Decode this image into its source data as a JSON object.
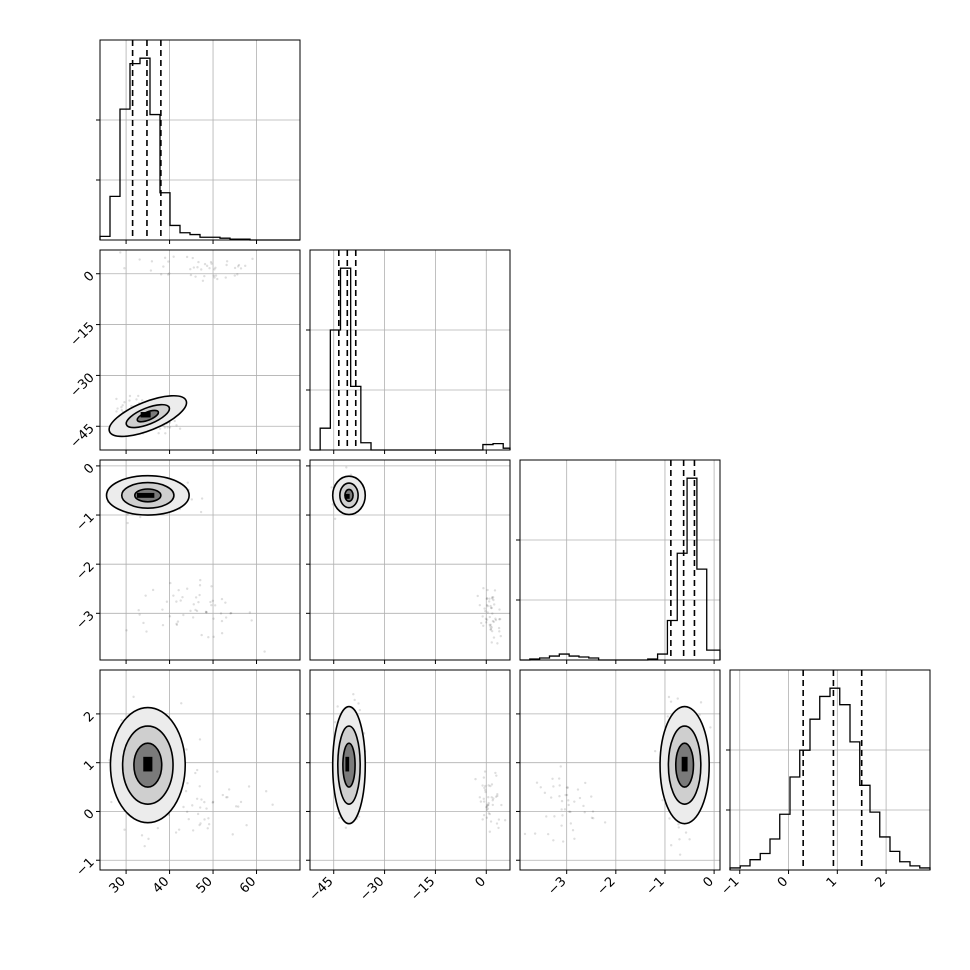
{
  "chart_data": {
    "type": "corner",
    "parameters": [
      {
        "index": 0,
        "range": [
          24,
          70
        ],
        "ticks": [
          30,
          40,
          50,
          60
        ],
        "tick_labels": [
          "30",
          "40",
          "50",
          "60"
        ],
        "quantiles": [
          31.5,
          34.8,
          38.0
        ],
        "hist_edges": [
          24,
          26.3,
          28.6,
          30.9,
          33.2,
          35.5,
          37.8,
          40.1,
          42.4,
          44.7,
          47.0,
          49.3,
          51.6,
          53.9,
          56.2,
          58.5,
          60.8,
          63.1,
          65.4,
          67.7,
          70
        ],
        "hist_counts": [
          0.02,
          0.24,
          0.72,
          0.97,
          1.0,
          0.69,
          0.26,
          0.08,
          0.04,
          0.03,
          0.015,
          0.015,
          0.01,
          0.005,
          0.005,
          0,
          0,
          0,
          0,
          0
        ]
      },
      {
        "index": 1,
        "range": [
          -52,
          7
        ],
        "ticks": [
          -45,
          -30,
          -15,
          0
        ],
        "tick_labels": [
          "−45",
          "−30",
          "−15",
          "0"
        ],
        "quantiles": [
          -43.5,
          -41.0,
          -38.5
        ],
        "hist_edges": [
          -52,
          -49,
          -46,
          -43,
          -40,
          -37,
          -34,
          -31,
          -28,
          -25,
          -22,
          -19,
          -16,
          -13,
          -10,
          -7,
          -4,
          -1,
          2,
          5,
          7
        ],
        "hist_counts": [
          0,
          0.12,
          0.66,
          1.0,
          0.35,
          0.04,
          0,
          0,
          0,
          0,
          0,
          0,
          0,
          0,
          0,
          0,
          0,
          0.03,
          0.035,
          0.01
        ]
      },
      {
        "index": 2,
        "range": [
          -3.95,
          0.12
        ],
        "ticks": [
          -3,
          -2,
          -1,
          0
        ],
        "tick_labels": [
          "−3",
          "−2",
          "−1",
          "0"
        ],
        "quantiles": [
          -0.88,
          -0.62,
          -0.4
        ],
        "hist_edges": [
          -3.95,
          -3.75,
          -3.55,
          -3.35,
          -3.15,
          -2.95,
          -2.75,
          -2.55,
          -2.35,
          -2.15,
          -1.95,
          -1.75,
          -1.55,
          -1.35,
          -1.15,
          -0.95,
          -0.75,
          -0.55,
          -0.35,
          -0.15,
          0.12
        ],
        "hist_counts": [
          0,
          0.005,
          0.01,
          0.02,
          0.03,
          0.02,
          0.015,
          0.01,
          0,
          0,
          0,
          0,
          0,
          0.005,
          0.03,
          0.2,
          0.54,
          0.92,
          0.46,
          0.05
        ]
      },
      {
        "index": 3,
        "range": [
          -1.2,
          2.9
        ],
        "ticks": [
          -1,
          0,
          1,
          2
        ],
        "tick_labels": [
          "−1",
          "0",
          "1",
          "2"
        ],
        "quantiles": [
          0.3,
          0.92,
          1.5
        ],
        "hist_edges": [
          -1.2,
          -0.99,
          -0.79,
          -0.58,
          -0.38,
          -0.18,
          0.03,
          0.23,
          0.44,
          0.64,
          0.85,
          1.05,
          1.26,
          1.46,
          1.67,
          1.87,
          2.08,
          2.28,
          2.49,
          2.69,
          2.9
        ],
        "hist_counts": [
          0.01,
          0.02,
          0.05,
          0.08,
          0.15,
          0.27,
          0.45,
          0.58,
          0.73,
          0.84,
          0.88,
          0.8,
          0.62,
          0.41,
          0.28,
          0.16,
          0.09,
          0.04,
          0.02,
          0.01
        ]
      }
    ],
    "histogram_ticks_1d": [
      0.33,
      0.66
    ],
    "pairs": [
      {
        "x": 0,
        "y": 1,
        "modes": [
          {
            "cx": 35,
            "cy": -42,
            "sx": 3.5,
            "sy": 2.4,
            "rho": -0.5,
            "n": 120
          },
          {
            "cx": 47,
            "cy": 2,
            "sx": 8,
            "sy": 2.5,
            "rho": -0.3,
            "n": 45
          }
        ],
        "contours": [
          {
            "cx": 35,
            "cy": -42,
            "rx": 5.3,
            "ry": 2.4,
            "rot": -22,
            "fill": "#cfcfcf"
          },
          {
            "cx": 35,
            "cy": -42,
            "rx": 9.5,
            "ry": 4.2,
            "rot": -22,
            "fill": "#ececec"
          },
          {
            "cx": 35,
            "cy": -42,
            "rx": 2.6,
            "ry": 1.2,
            "rot": -22,
            "fill": "#7a7a7a"
          }
        ],
        "peak": [
          {
            "x": 34.5,
            "y": -41.6,
            "w": 2.3,
            "h": 1.6
          }
        ]
      },
      {
        "x": 0,
        "y": 2,
        "modes": [
          {
            "cx": 35,
            "cy": -0.62,
            "sx": 4.5,
            "sy": 0.16,
            "rho": 0,
            "n": 130
          },
          {
            "cx": 45,
            "cy": -2.95,
            "sx": 7.5,
            "sy": 0.28,
            "rho": -0.2,
            "n": 55
          }
        ],
        "contours": [
          {
            "cx": 35,
            "cy": -0.6,
            "rx": 9.5,
            "ry": 0.4,
            "rot": 0,
            "fill": "#ececec"
          },
          {
            "cx": 35,
            "cy": -0.6,
            "rx": 6,
            "ry": 0.26,
            "rot": 0,
            "fill": "#cfcfcf"
          },
          {
            "cx": 35,
            "cy": -0.6,
            "rx": 3,
            "ry": 0.13,
            "rot": 0,
            "fill": "#7a7a7a"
          }
        ],
        "peak": [
          {
            "x": 34.5,
            "y": -0.6,
            "w": 4,
            "h": 0.1
          }
        ]
      },
      {
        "x": 1,
        "y": 2,
        "modes": [
          {
            "cx": -40.5,
            "cy": -0.62,
            "sx": 1.8,
            "sy": 0.18,
            "rho": 0,
            "n": 120
          },
          {
            "cx": 1.5,
            "cy": -3.0,
            "sx": 1.8,
            "sy": 0.3,
            "rho": -0.6,
            "n": 50
          }
        ],
        "contours": [
          {
            "cx": -40.5,
            "cy": -0.6,
            "rx": 4.8,
            "ry": 0.39,
            "rot": 0,
            "fill": "#ececec"
          },
          {
            "cx": -40.5,
            "cy": -0.6,
            "rx": 2.7,
            "ry": 0.25,
            "rot": 0,
            "fill": "#cfcfcf"
          },
          {
            "cx": -40.5,
            "cy": -0.6,
            "rx": 1.2,
            "ry": 0.12,
            "rot": 0,
            "fill": "#7a7a7a"
          }
        ],
        "peak": [
          {
            "x": -41,
            "y": -0.62,
            "w": 1.4,
            "h": 0.1
          }
        ]
      },
      {
        "x": 0,
        "y": 3,
        "modes": [
          {
            "cx": 35,
            "cy": 1,
            "sx": 3.8,
            "sy": 0.6,
            "rho": 0,
            "n": 150
          },
          {
            "cx": 47,
            "cy": 0.1,
            "sx": 7,
            "sy": 0.4,
            "rho": 0,
            "n": 50
          }
        ],
        "contours": [
          {
            "cx": 35,
            "cy": 0.95,
            "rx": 8.6,
            "ry": 1.18,
            "rot": 0,
            "fill": "#ececec"
          },
          {
            "cx": 35,
            "cy": 0.95,
            "rx": 5.8,
            "ry": 0.8,
            "rot": 0,
            "fill": "#cfcfcf"
          },
          {
            "cx": 35,
            "cy": 0.95,
            "rx": 3.2,
            "ry": 0.45,
            "rot": 0,
            "fill": "#7a7a7a"
          }
        ],
        "peak": [
          {
            "x": 35,
            "y": 0.97,
            "w": 2.1,
            "h": 0.3
          }
        ]
      },
      {
        "x": 1,
        "y": 3,
        "modes": [
          {
            "cx": -40.5,
            "cy": 1,
            "sx": 2,
            "sy": 0.6,
            "rho": 0,
            "n": 150
          },
          {
            "cx": 1,
            "cy": 0.15,
            "sx": 2,
            "sy": 0.35,
            "rho": 0,
            "n": 45
          }
        ],
        "contours": [
          {
            "cx": -40.5,
            "cy": 0.95,
            "rx": 4.8,
            "ry": 1.2,
            "rot": 0,
            "fill": "#ececec"
          },
          {
            "cx": -40.5,
            "cy": 0.95,
            "rx": 3.3,
            "ry": 0.8,
            "rot": 0,
            "fill": "#cfcfcf"
          },
          {
            "cx": -40.5,
            "cy": 0.95,
            "rx": 1.8,
            "ry": 0.45,
            "rot": 0,
            "fill": "#7a7a7a"
          }
        ],
        "peak": [
          {
            "x": -41,
            "y": 0.97,
            "w": 1.1,
            "h": 0.3
          }
        ]
      },
      {
        "x": 2,
        "y": 3,
        "modes": [
          {
            "cx": -0.6,
            "cy": 1,
            "sx": 0.2,
            "sy": 0.6,
            "rho": 0,
            "n": 150
          },
          {
            "cx": -3.0,
            "cy": 0.15,
            "sx": 0.3,
            "sy": 0.35,
            "rho": 0,
            "n": 45
          }
        ],
        "contours": [
          {
            "cx": -0.6,
            "cy": 0.95,
            "rx": 0.5,
            "ry": 1.2,
            "rot": 0,
            "fill": "#ececec"
          },
          {
            "cx": -0.6,
            "cy": 0.95,
            "rx": 0.33,
            "ry": 0.8,
            "rot": 0,
            "fill": "#cfcfcf"
          },
          {
            "cx": -0.6,
            "cy": 0.95,
            "rx": 0.18,
            "ry": 0.45,
            "rot": 0,
            "fill": "#7a7a7a"
          }
        ],
        "peak": [
          {
            "x": -0.6,
            "y": 0.97,
            "w": 0.12,
            "h": 0.3
          }
        ]
      }
    ]
  }
}
